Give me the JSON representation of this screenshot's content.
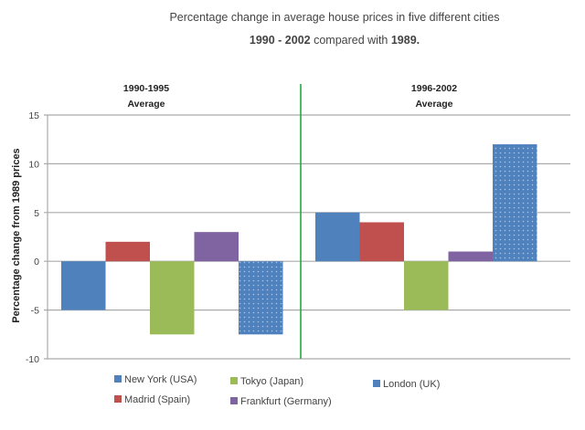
{
  "chart_data": {
    "type": "bar",
    "title": "Percentage change in average house prices in five different cities",
    "subtitle": {
      "parts": [
        {
          "text": "1990 - 2002",
          "bold": true
        },
        {
          "text": " compared with ",
          "bold": false
        },
        {
          "text": "1989.",
          "bold": true
        }
      ]
    },
    "xlabel": "",
    "ylabel": "Percentage change from 1989 prices",
    "ylim": [
      -10,
      15
    ],
    "yticks": [
      15,
      10,
      5,
      0,
      -5,
      -10
    ],
    "grid": true,
    "categories": [
      {
        "line1": "1990-1995",
        "line2": "Average"
      },
      {
        "line1": "1996-2002",
        "line2": "Average"
      }
    ],
    "series": [
      {
        "name": "New York (USA)",
        "color": "#4f81bd",
        "pattern": false,
        "values": [
          -5,
          5
        ]
      },
      {
        "name": "Madrid (Spain)",
        "color": "#c0504d",
        "pattern": false,
        "values": [
          2,
          4
        ]
      },
      {
        "name": "Tokyo  (Japan)",
        "color": "#9bbb59",
        "pattern": false,
        "values": [
          -7.5,
          -5
        ]
      },
      {
        "name": "Frankfurt (Germany)",
        "color": "#8064a2",
        "pattern": false,
        "values": [
          3,
          1
        ]
      },
      {
        "name": "London (UK)",
        "color": "#4f81bd",
        "pattern": true,
        "values": [
          -7.5,
          12
        ]
      }
    ],
    "divider_color": "#22aa44",
    "legend_position": "bottom"
  }
}
